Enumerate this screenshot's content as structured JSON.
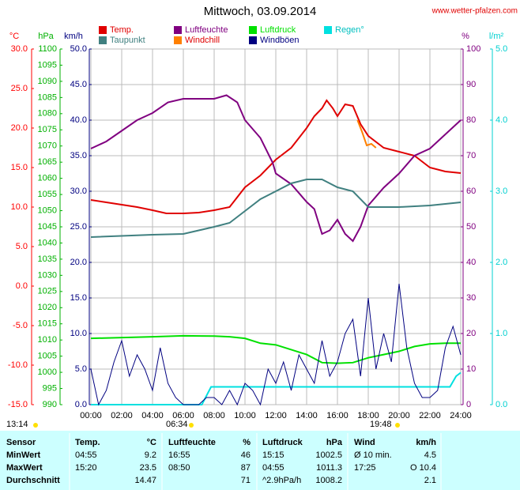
{
  "chart_data": {
    "type": "line",
    "title": "Mittwoch, 03.09.2014",
    "source": "www.wetter-pfalzen.com",
    "xlim": [
      0,
      24
    ],
    "xticks": [
      {
        "value": 0,
        "label": "00:00"
      },
      {
        "value": 2,
        "label": "02:00"
      },
      {
        "value": 4,
        "label": "04:00"
      },
      {
        "value": 6,
        "label": "06:00"
      },
      {
        "value": 8,
        "label": "08:00"
      },
      {
        "value": 10,
        "label": "10:00"
      },
      {
        "value": 12,
        "label": "12:00"
      },
      {
        "value": 14,
        "label": "14:00"
      },
      {
        "value": 16,
        "label": "16:00"
      },
      {
        "value": 18,
        "label": "18:00"
      },
      {
        "value": 20,
        "label": "20:00"
      },
      {
        "value": 22,
        "label": "22:00"
      },
      {
        "value": 24,
        "label": "24:00"
      }
    ],
    "grid": true,
    "axes": [
      {
        "unit": "°C",
        "color": "#ff0000",
        "lim": [
          -15,
          30
        ],
        "ticks": [
          {
            "value": -15,
            "label": "-15.0"
          },
          {
            "value": -10,
            "label": "-10.0"
          },
          {
            "value": -5,
            "label": "-5.0"
          },
          {
            "value": 0,
            "label": "0.0"
          },
          {
            "value": 5,
            "label": "5.0"
          },
          {
            "value": 10,
            "label": "10.0"
          },
          {
            "value": 15,
            "label": "15.0"
          },
          {
            "value": 20,
            "label": "20.0"
          },
          {
            "value": 25,
            "label": "25.0"
          },
          {
            "value": 30,
            "label": "30.0"
          }
        ]
      },
      {
        "unit": "hPa",
        "color": "#00b000",
        "lim": [
          990,
          1100
        ],
        "ticks": [
          990,
          995,
          1000,
          1005,
          1010,
          1015,
          1020,
          1025,
          1030,
          1035,
          1040,
          1045,
          1050,
          1055,
          1060,
          1065,
          1070,
          1075,
          1080,
          1085,
          1090,
          1095,
          1100
        ]
      },
      {
        "unit": "km/h",
        "color": "#000080",
        "lim": [
          0,
          50
        ],
        "ticks": [
          {
            "value": 0,
            "label": "0.0"
          },
          {
            "value": 5,
            "label": "5.0"
          },
          {
            "value": 10,
            "label": "10.0"
          },
          {
            "value": 15,
            "label": "15.0"
          },
          {
            "value": 20,
            "label": "20.0"
          },
          {
            "value": 25,
            "label": "25.0"
          },
          {
            "value": 30,
            "label": "30.0"
          },
          {
            "value": 35,
            "label": "35.0"
          },
          {
            "value": 40,
            "label": "40.0"
          },
          {
            "value": 45,
            "label": "45.0"
          },
          {
            "value": 50,
            "label": "50.0"
          }
        ]
      },
      {
        "unit": "%",
        "color": "#800080",
        "lim": [
          0,
          100
        ],
        "ticks": [
          0,
          10,
          20,
          30,
          40,
          50,
          60,
          70,
          80,
          90,
          100
        ]
      },
      {
        "unit": "l/m²",
        "color": "#00d0d0",
        "lim": [
          0,
          5
        ],
        "ticks": [
          {
            "value": 0,
            "label": "0.0"
          },
          {
            "value": 1,
            "label": "1.0"
          },
          {
            "value": 2,
            "label": "2.0"
          },
          {
            "value": 3,
            "label": "3.0"
          },
          {
            "value": 4,
            "label": "4.0"
          },
          {
            "value": 5,
            "label": "5.0"
          }
        ]
      }
    ],
    "series": [
      {
        "name": "Temp.",
        "color": "#e00000",
        "axis": 0,
        "x": [
          0,
          1,
          2,
          3,
          4,
          4.9,
          6,
          7,
          8,
          9,
          10,
          11,
          12,
          13,
          14,
          14.5,
          15,
          15.3,
          15.7,
          16,
          16.5,
          17,
          17.5,
          18,
          19,
          20,
          21,
          22,
          23,
          24
        ],
        "values": [
          10.9,
          10.6,
          10.3,
          10.0,
          9.6,
          9.2,
          9.2,
          9.3,
          9.6,
          10.0,
          12.5,
          14.0,
          16.0,
          17.5,
          20.0,
          21.5,
          22.5,
          23.5,
          22.5,
          21.5,
          23.0,
          22.8,
          20.5,
          19.0,
          17.5,
          17.0,
          16.5,
          15.0,
          14.5,
          14.3
        ]
      },
      {
        "name": "Luftfeuchte",
        "color": "#800080",
        "axis": 3,
        "x": [
          0,
          1,
          2,
          3,
          4,
          5,
          6,
          7,
          8,
          8.8,
          9.5,
          10,
          11,
          11.8,
          12,
          13,
          14,
          14.5,
          15,
          15.5,
          16,
          16.5,
          17,
          17.5,
          18,
          19,
          20,
          21,
          22,
          23,
          24
        ],
        "values": [
          72,
          74,
          77,
          80,
          82,
          85,
          86,
          86,
          86,
          87,
          85,
          80,
          75,
          68,
          65,
          62,
          57,
          55,
          48,
          49,
          52,
          48,
          46,
          50,
          56,
          61,
          65,
          70,
          72,
          76,
          80
        ]
      },
      {
        "name": "Luftdruck",
        "color": "#00e000",
        "axis": 1,
        "x": [
          0,
          4,
          6,
          8,
          9,
          10,
          11,
          12,
          13,
          14,
          15,
          16,
          17,
          18,
          19,
          20,
          21,
          22,
          23,
          24
        ],
        "values": [
          1010.5,
          1011,
          1011.3,
          1011.2,
          1011,
          1010.5,
          1009.0,
          1008.5,
          1007,
          1005.5,
          1003,
          1002.8,
          1003,
          1004.5,
          1005.5,
          1006.5,
          1008,
          1008.8,
          1009,
          1009
        ]
      },
      {
        "name": "Regen°",
        "color": "#00e0e0",
        "axis": 4,
        "x": [
          0,
          7.2,
          7.8,
          23.3,
          23.7,
          24
        ],
        "values": [
          0,
          0,
          0.25,
          0.25,
          0.4,
          0.45
        ]
      },
      {
        "name": "Taupunkt",
        "color": "#408080",
        "axis": 0,
        "x": [
          0,
          4,
          6,
          8,
          9,
          10,
          11,
          12,
          13,
          14,
          15,
          16,
          17,
          18,
          20,
          22,
          24
        ],
        "values": [
          6.2,
          6.5,
          6.6,
          7.5,
          8.0,
          9.5,
          11.0,
          12.0,
          13.0,
          13.5,
          13.5,
          12.5,
          12.0,
          10.0,
          10.0,
          10.2,
          10.6
        ]
      },
      {
        "name": "Windchill",
        "color": "#ff8000",
        "axis": 0,
        "x": [
          17.3,
          17.6,
          17.9,
          18.2,
          18.5
        ],
        "values": [
          21.0,
          19.5,
          17.8,
          18.0,
          17.5
        ]
      },
      {
        "name": "Windböen",
        "color": "#000080",
        "axis": 2,
        "x": [
          0,
          0.5,
          1,
          1.5,
          2,
          2.5,
          3,
          3.5,
          4,
          4.5,
          5,
          5.5,
          6,
          6.5,
          7,
          7.5,
          8,
          8.5,
          9,
          9.5,
          10,
          10.5,
          11,
          11.5,
          12,
          12.5,
          13,
          13.5,
          14,
          14.5,
          15,
          15.5,
          16,
          16.5,
          17,
          17.5,
          18,
          18.5,
          19,
          19.5,
          20,
          20.5,
          21,
          21.5,
          22,
          22.5,
          23,
          23.5,
          24
        ],
        "values": [
          5,
          0,
          2,
          6,
          9,
          4,
          7,
          5,
          2,
          8,
          3,
          1,
          0,
          0,
          0,
          1,
          1,
          0,
          2,
          0,
          3,
          2,
          0,
          5,
          3,
          6,
          2,
          7,
          5,
          3,
          9,
          4,
          6,
          10,
          12,
          4,
          15,
          5,
          10,
          6,
          17,
          8,
          3,
          1,
          1,
          2,
          8,
          11,
          7
        ]
      }
    ],
    "astro": [
      "13:14",
      "06:34",
      "19:48"
    ]
  },
  "table": {
    "header": [
      "Sensor",
      "Temp.",
      "°C",
      "Luftfeuchte",
      "%",
      "Luftdruck",
      "hPa",
      "Wind",
      "km/h"
    ],
    "rows": [
      [
        "MinWert",
        "04:55",
        "9.2",
        "16:55",
        "46",
        "15:15",
        "1002.5",
        "Ø 10 min.",
        "4.5"
      ],
      [
        "MaxWert",
        "15:20",
        "23.5",
        "08:50",
        "87",
        "04:55",
        "1011.3",
        "17:25",
        "O 10.4"
      ],
      [
        "Durchschnitt",
        null,
        "14.47",
        null,
        "71",
        "^2.9hPa/h",
        "1008.2",
        null,
        "2.1"
      ]
    ]
  }
}
